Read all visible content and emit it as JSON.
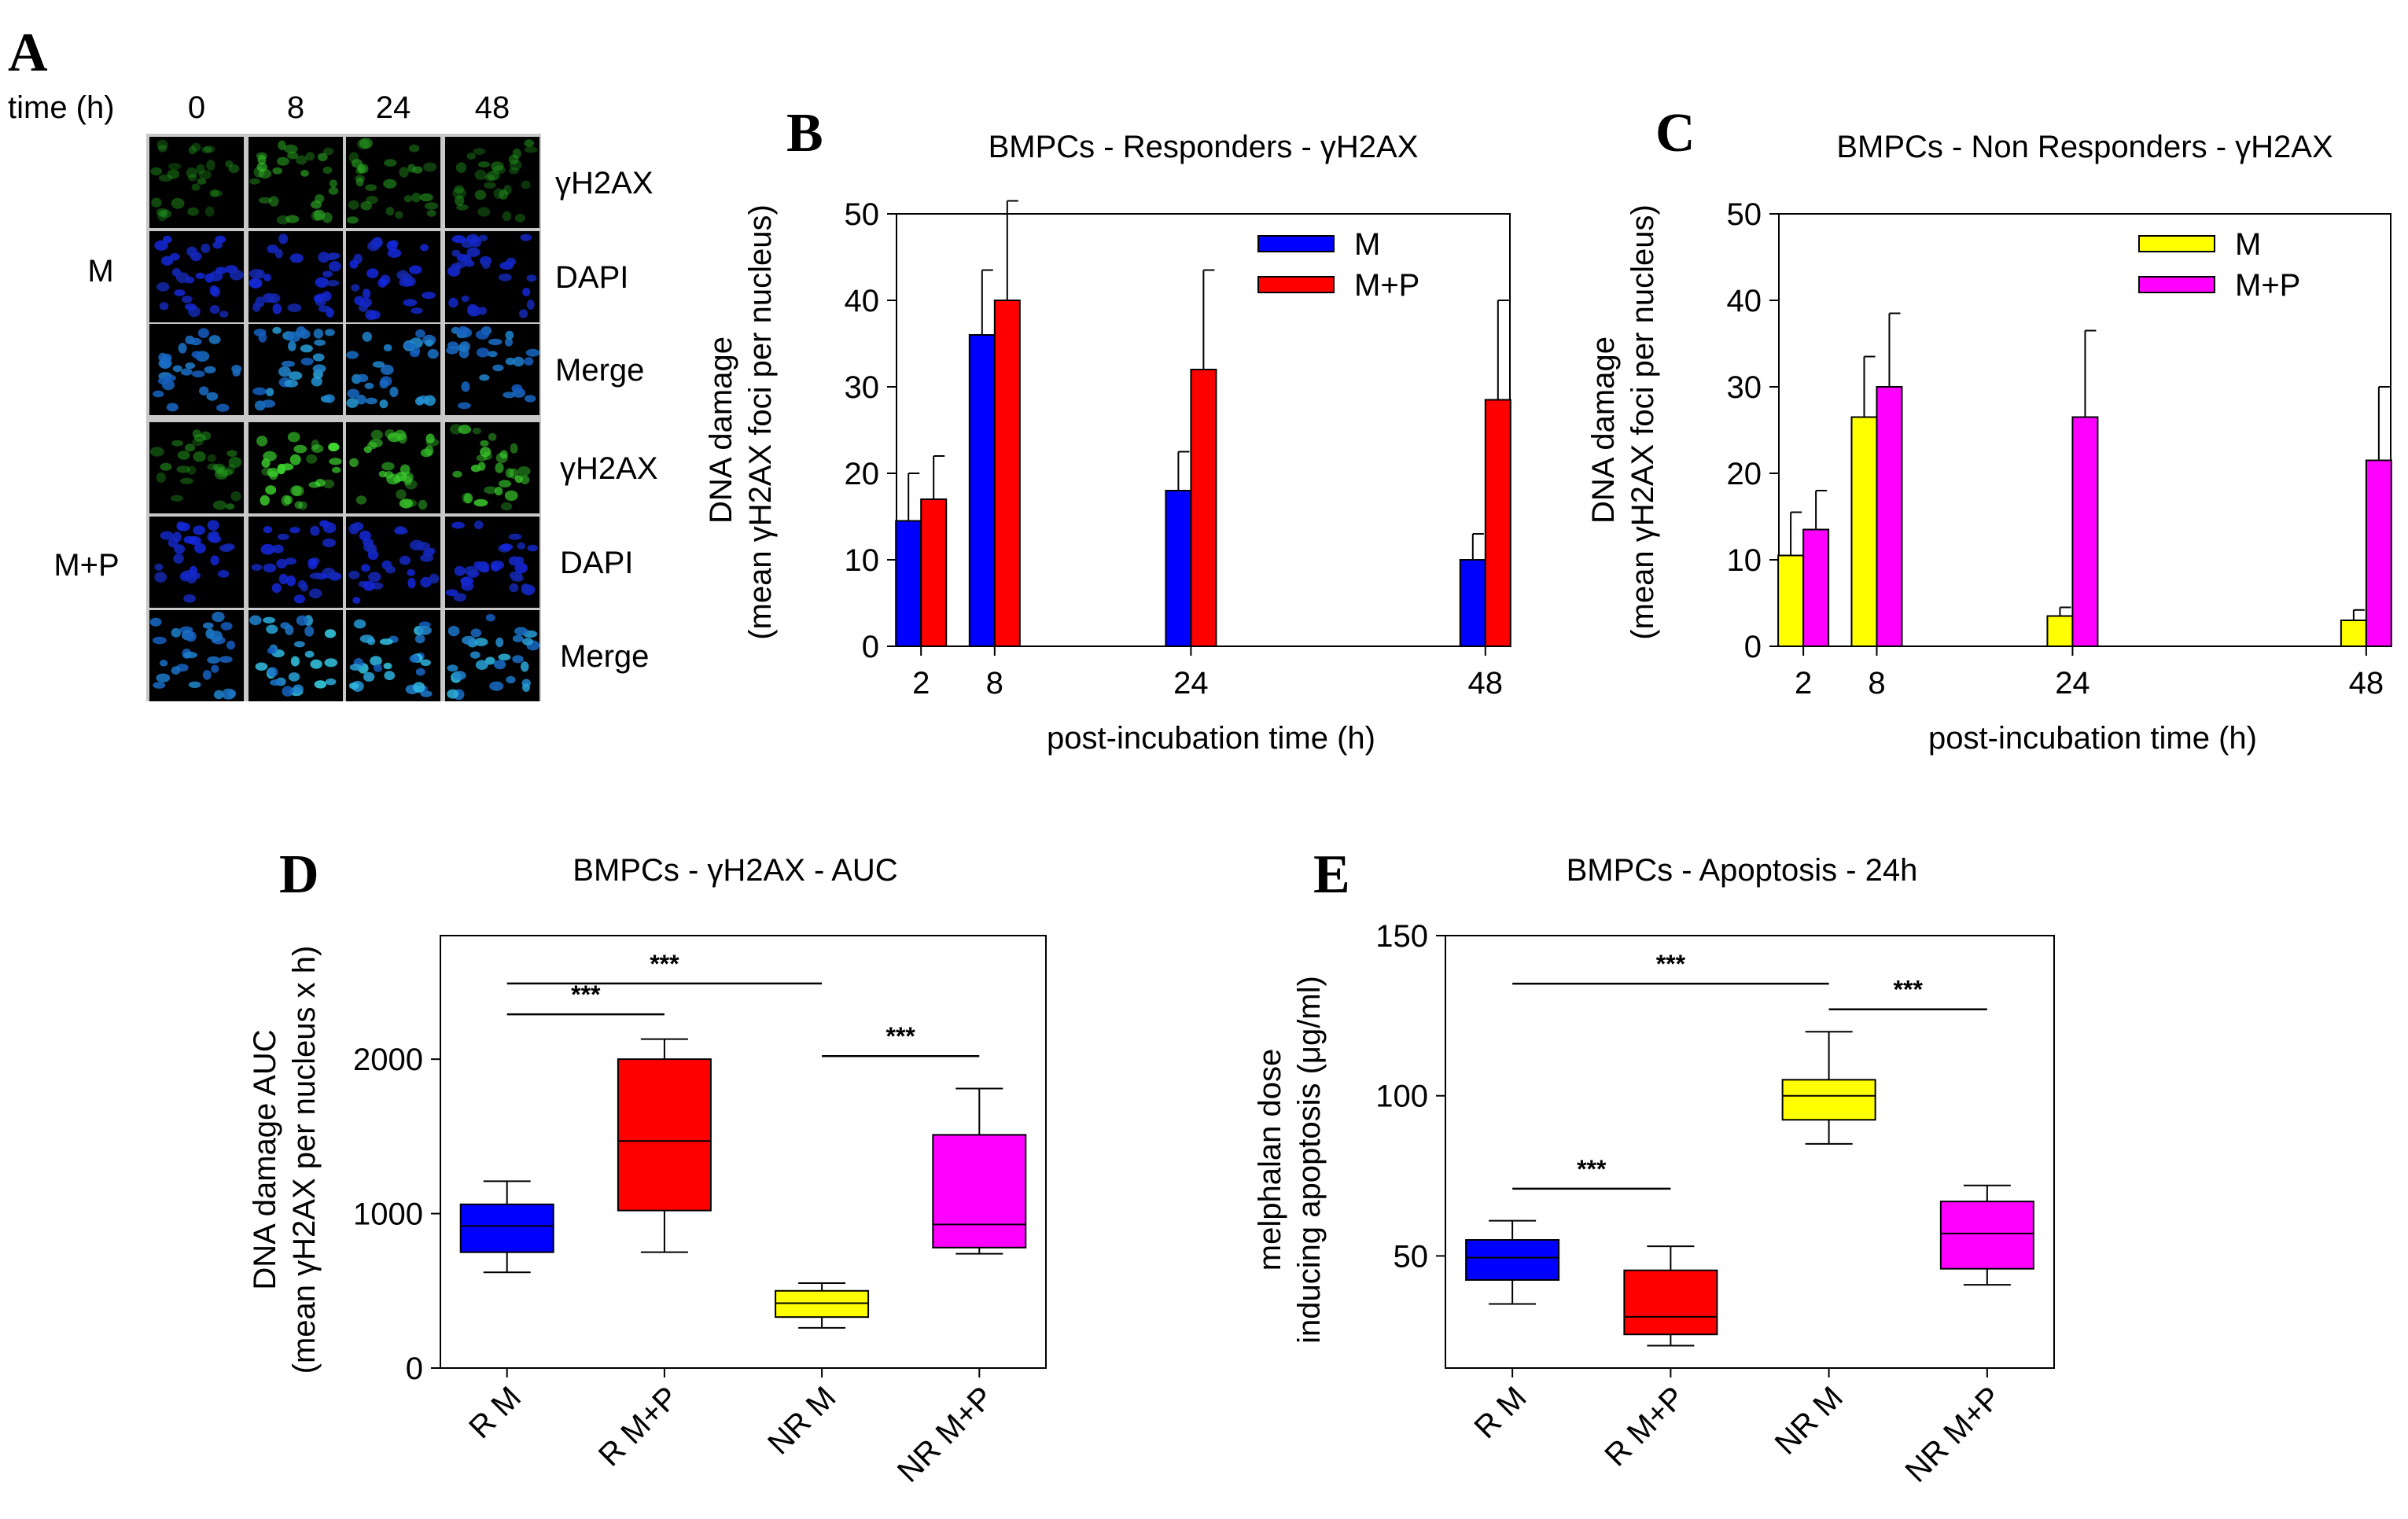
{
  "panel_letters": {
    "a": "A",
    "b": "B",
    "c": "C",
    "d": "D",
    "e": "E"
  },
  "micrographs": {
    "time_label": "time (h)",
    "times": [
      "0",
      "8",
      "24",
      "48"
    ],
    "groups": [
      "M",
      "M+P"
    ],
    "stains": [
      "γH2AX",
      "DAPI",
      "Merge"
    ],
    "intensity_note": {
      "M": [
        0.25,
        0.55,
        0.45,
        0.3
      ],
      "M+P": [
        0.35,
        0.9,
        0.8,
        0.75
      ]
    }
  },
  "colors": {
    "blue": "#0000ff",
    "red": "#ff0000",
    "yellow": "#ffff00",
    "magenta": "#ff00ff"
  },
  "chart_data": [
    {
      "id": "B",
      "type": "bar",
      "title": "BMPCs - Responders - γH2AX",
      "xlabel": "post-incubation time (h)",
      "ylabel_line1": "DNA damage",
      "ylabel_line2": "(mean γH2AX foci per nucleus)",
      "categories": [
        2,
        8,
        24,
        48
      ],
      "xlim": [
        0,
        50
      ],
      "ylim": [
        0,
        50
      ],
      "yticks": [
        0,
        10,
        20,
        30,
        40,
        50
      ],
      "legend_position": "top-right",
      "series": [
        {
          "name": "M",
          "color": "#0000ff",
          "values": [
            14.5,
            36,
            18,
            10
          ],
          "errors": [
            5.5,
            7.5,
            4.5,
            3
          ]
        },
        {
          "name": "M+P",
          "color": "#ff0000",
          "values": [
            17,
            40,
            32,
            28.5
          ],
          "errors": [
            5,
            11.5,
            11.5,
            11.5
          ]
        }
      ]
    },
    {
      "id": "C",
      "type": "bar",
      "title": "BMPCs - Non Responders - γH2AX",
      "xlabel": "post-incubation time (h)",
      "ylabel_line1": "DNA damage",
      "ylabel_line2": "(mean γH2AX foci per nucleus)",
      "categories": [
        2,
        8,
        24,
        48
      ],
      "xlim": [
        0,
        50
      ],
      "ylim": [
        0,
        50
      ],
      "yticks": [
        0,
        10,
        20,
        30,
        40,
        50
      ],
      "legend_position": "top-right",
      "series": [
        {
          "name": "M",
          "color": "#ffff00",
          "values": [
            10.5,
            26.5,
            3.5,
            3
          ],
          "errors": [
            5,
            7,
            1,
            1.2
          ]
        },
        {
          "name": "M+P",
          "color": "#ff00ff",
          "values": [
            13.5,
            30,
            26.5,
            21.5
          ],
          "errors": [
            4.5,
            8.5,
            10,
            8.5
          ]
        }
      ]
    },
    {
      "id": "D",
      "type": "box",
      "title": "BMPCs - γH2AX - AUC",
      "ylabel_line1": "DNA damage AUC",
      "ylabel_line2": "(mean γH2AX per nucleus x h)",
      "ylim": [
        0,
        2800
      ],
      "yticks": [
        0,
        1000,
        2000
      ],
      "categories": [
        "R M",
        "R M+P",
        "NR M",
        "NR M+P"
      ],
      "boxes": [
        {
          "color": "#0000ff",
          "min": 620,
          "q1": 750,
          "median": 920,
          "q3": 1060,
          "max": 1210
        },
        {
          "color": "#ff0000",
          "min": 750,
          "q1": 1020,
          "median": 1470,
          "q3": 2000,
          "max": 2130
        },
        {
          "color": "#ffff00",
          "min": 260,
          "q1": 330,
          "median": 420,
          "q3": 500,
          "max": 550
        },
        {
          "color": "#ff00ff",
          "min": 740,
          "q1": 780,
          "median": 930,
          "q3": 1510,
          "max": 1810
        }
      ],
      "significance": [
        {
          "from": 0,
          "to": 2,
          "value": 2490,
          "label": "***"
        },
        {
          "from": 0,
          "to": 1,
          "value": 2290,
          "label": "***"
        },
        {
          "from": 2,
          "to": 3,
          "value": 2020,
          "label": "***"
        }
      ]
    },
    {
      "id": "E",
      "type": "box",
      "title": "BMPCs - Apoptosis - 24h",
      "ylabel_line1": "melphalan dose",
      "ylabel_line2": "inducing apoptosis (μg/ml)",
      "ylim": [
        15,
        150
      ],
      "yticks": [
        50,
        100,
        150
      ],
      "categories": [
        "R M",
        "R M+P",
        "NR M",
        "NR M+P"
      ],
      "boxes": [
        {
          "color": "#0000ff",
          "min": 35,
          "q1": 42.5,
          "median": 49.5,
          "q3": 55,
          "max": 61
        },
        {
          "color": "#ff0000",
          "min": 22,
          "q1": 25.5,
          "median": 31,
          "q3": 45.5,
          "max": 53
        },
        {
          "color": "#ffff00",
          "min": 85,
          "q1": 92.5,
          "median": 100,
          "q3": 105,
          "max": 120
        },
        {
          "color": "#ff00ff",
          "min": 41,
          "q1": 46,
          "median": 57,
          "q3": 67,
          "max": 72
        }
      ],
      "significance": [
        {
          "from": 0,
          "to": 2,
          "value": 135,
          "label": "***"
        },
        {
          "from": 2,
          "to": 3,
          "value": 127,
          "label": "***"
        },
        {
          "from": 0,
          "to": 1,
          "value": 71,
          "label": "***"
        }
      ]
    }
  ]
}
